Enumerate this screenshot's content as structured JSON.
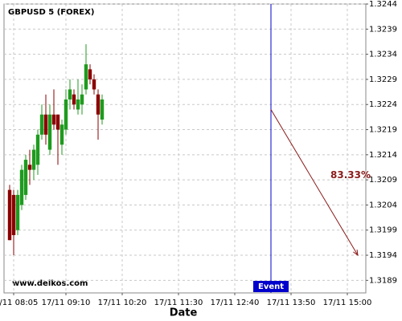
{
  "chart_data": {
    "type": "candlestick",
    "title": "GBPUSD 5 (FOREX)",
    "watermark": "www.delkos.com",
    "x_label": "Date",
    "x": [
      480,
      485,
      490,
      495,
      500,
      505,
      510,
      515,
      520,
      525,
      530,
      535,
      540,
      545,
      550,
      555,
      560,
      565,
      570,
      575,
      580,
      585,
      590,
      595
    ],
    "open": [
      1.3207,
      1.3206,
      1.3199,
      1.3204,
      1.3206,
      1.3212,
      1.3211,
      1.3212,
      1.3218,
      1.3222,
      1.3215,
      1.3222,
      1.3222,
      1.3216,
      1.3219,
      1.3225,
      1.3226,
      1.3223,
      1.3224,
      1.3227,
      1.3231,
      1.3229,
      1.3226,
      1.3221
    ],
    "high": [
      1.3208,
      1.3207,
      1.3207,
      1.3212,
      1.3214,
      1.3215,
      1.3216,
      1.3219,
      1.3224,
      1.3226,
      1.3224,
      1.3227,
      1.3222,
      1.3221,
      1.3227,
      1.3229,
      1.3227,
      1.3229,
      1.3228,
      1.3236,
      1.3232,
      1.323,
      1.3227,
      1.3226
    ],
    "low": [
      1.3197,
      1.3194,
      1.3198,
      1.3203,
      1.3205,
      1.3208,
      1.3209,
      1.321,
      1.3217,
      1.3216,
      1.3214,
      1.3219,
      1.3212,
      1.3214,
      1.3218,
      1.3223,
      1.3223,
      1.3222,
      1.3222,
      1.3226,
      1.3228,
      1.3226,
      1.3217,
      1.322
    ],
    "close": [
      1.3197,
      1.3198,
      1.3206,
      1.3211,
      1.3213,
      1.3211,
      1.3215,
      1.3218,
      1.3222,
      1.3218,
      1.3222,
      1.322,
      1.3219,
      1.322,
      1.3225,
      1.3227,
      1.3224,
      1.3225,
      1.3226,
      1.3232,
      1.3229,
      1.3227,
      1.3222,
      1.3225
    ],
    "up_color": "#1e9b1e",
    "down_color": "#8b0000",
    "xlim": [
      473,
      923
    ],
    "xticks": [
      {
        "value": 485,
        "label": "17/11 08:05"
      },
      {
        "value": 550,
        "label": "17/11 09:10"
      },
      {
        "value": 620,
        "label": "17/11 10:20"
      },
      {
        "value": 690,
        "label": "17/11 11:30"
      },
      {
        "value": 760,
        "label": "17/11 12:40"
      },
      {
        "value": 830,
        "label": "17/11 13:50"
      },
      {
        "value": 900,
        "label": "17/11 15:00"
      }
    ],
    "ylim": [
      1.31865,
      1.3244
    ],
    "yticks": [
      1.3189,
      1.3194,
      1.3199,
      1.3204,
      1.3209,
      1.3214,
      1.3219,
      1.3224,
      1.3229,
      1.3234,
      1.3239,
      1.3244
    ],
    "grid": true,
    "event": {
      "label": "Event",
      "x": 805,
      "color": "#0000cc"
    },
    "projection": {
      "label": "83.33%",
      "start": 1.3223,
      "end": 1.3194,
      "end_x": 913,
      "color": "#8b1a1a"
    }
  }
}
